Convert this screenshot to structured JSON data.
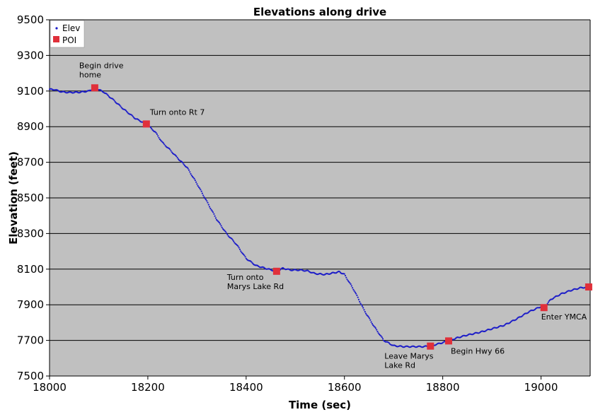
{
  "chart_data": {
    "type": "scatter",
    "title": "Elevations along drive",
    "xlabel": "Time (sec)",
    "ylabel": "Elevation (feet)",
    "xlim": [
      18000,
      19100
    ],
    "ylim": [
      7500,
      9500
    ],
    "xticks": [
      18000,
      18200,
      18400,
      18600,
      18800,
      19000
    ],
    "yticks": [
      7500,
      7700,
      7900,
      8100,
      8300,
      8500,
      8700,
      8900,
      9100,
      9300,
      9500
    ],
    "grid": true,
    "legend_position": "top-left",
    "colors": {
      "plot_bg": "#c0c0c0",
      "elev": "#1c1cc8",
      "poi": "#e0303a"
    },
    "series": [
      {
        "name": "Elev",
        "style": "dots",
        "x": [
          18000,
          18010,
          18025,
          18040,
          18060,
          18080,
          18092,
          18110,
          18130,
          18150,
          18175,
          18197,
          18215,
          18230,
          18245,
          18262,
          18280,
          18300,
          18320,
          18340,
          18360,
          18380,
          18400,
          18420,
          18445,
          18462,
          18475,
          18490,
          18510,
          18525,
          18540,
          18560,
          18580,
          18590,
          18600,
          18620,
          18640,
          18660,
          18680,
          18700,
          18720,
          18740,
          18760,
          18775,
          18790,
          18812,
          18830,
          18850,
          18875,
          18900,
          18925,
          18950,
          18975,
          19000,
          19006,
          19020,
          19040,
          19060,
          19080,
          19097
        ],
        "y": [
          9110,
          9108,
          9095,
          9092,
          9093,
          9100,
          9118,
          9095,
          9050,
          9000,
          8945,
          8915,
          8870,
          8810,
          8770,
          8720,
          8670,
          8580,
          8480,
          8380,
          8300,
          8240,
          8160,
          8120,
          8100,
          8088,
          8105,
          8095,
          8095,
          8090,
          8075,
          8070,
          8080,
          8085,
          8070,
          7980,
          7870,
          7780,
          7700,
          7670,
          7665,
          7665,
          7665,
          7668,
          7680,
          7697,
          7715,
          7730,
          7745,
          7765,
          7785,
          7820,
          7860,
          7890,
          7884,
          7930,
          7960,
          7980,
          7995,
          8000
        ]
      },
      {
        "name": "POI",
        "style": "squares",
        "points": [
          {
            "x": 18092,
            "y": 9118,
            "label": "Begin drive home"
          },
          {
            "x": 18197,
            "y": 8915,
            "label": "Turn onto Rt 7"
          },
          {
            "x": 18462,
            "y": 8088,
            "label": "Turn onto Marys Lake Rd"
          },
          {
            "x": 18775,
            "y": 7668,
            "label": "Leave Marys Lake Rd"
          },
          {
            "x": 18812,
            "y": 7697,
            "label": "Begin Hwy 66"
          },
          {
            "x": 19006,
            "y": 7884,
            "label": "Enter YMCA"
          },
          {
            "x": 19097,
            "y": 8000,
            "label": ""
          }
        ]
      }
    ],
    "annotations": [
      {
        "lines": [
          "Begin drive",
          "home"
        ]
      },
      {
        "lines": [
          "Turn onto Rt 7"
        ]
      },
      {
        "lines": [
          "Turn onto",
          "Marys Lake Rd"
        ]
      },
      {
        "lines": [
          "Leave Marys",
          "Lake Rd"
        ]
      },
      {
        "lines": [
          "Begin Hwy 66"
        ]
      },
      {
        "lines": [
          "Enter YMCA"
        ]
      }
    ]
  }
}
